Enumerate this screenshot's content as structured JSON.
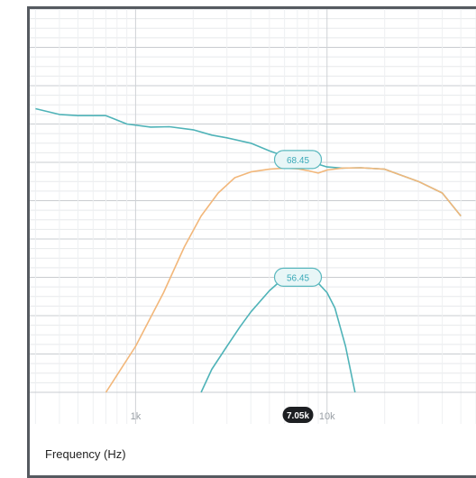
{
  "chart_data": {
    "type": "line",
    "xlabel": "Frequency (Hz)",
    "xscale": "log",
    "xlim": [
      280,
      60000
    ],
    "ylim": [
      0,
      100
    ],
    "x_tick_labels": [
      {
        "value": 1000,
        "label": "1k"
      },
      {
        "value": 10000,
        "label": "10k"
      }
    ],
    "cursor": {
      "value": 7050,
      "label": "7.05k"
    },
    "series": [
      {
        "color": "#4fb3b8",
        "x": [
          300,
          400,
          500,
          700,
          900,
          1200,
          1500,
          2000,
          2500,
          3000,
          4000,
          5000,
          6000,
          7050,
          8000,
          9000,
          10000,
          12000,
          15000,
          20000,
          30000,
          40000,
          50000
        ],
        "y": [
          74,
          72.5,
          72.2,
          72.2,
          70,
          69.2,
          69.3,
          68.5,
          67.1,
          66.4,
          65,
          63,
          61.6,
          61.2,
          60.4,
          59.5,
          58.8,
          58.5,
          58.6,
          58.2,
          55,
          52,
          46
        ],
        "value_label": "68.45"
      },
      {
        "color": "#f2b77a",
        "x": [
          700,
          1000,
          1400,
          1800,
          2200,
          2700,
          3300,
          4000,
          5000,
          6000,
          7050,
          8000,
          9000,
          10000,
          12000,
          15000,
          20000,
          30000,
          40000,
          50000
        ],
        "y": [
          0,
          12,
          26,
          38,
          46,
          52,
          56,
          57.5,
          58.2,
          58.5,
          58.3,
          57.8,
          57.2,
          58,
          58.5,
          58.6,
          58.2,
          55,
          52,
          46
        ]
      },
      {
        "color": "#4fb3b8",
        "x": [
          2200,
          2500,
          3000,
          3500,
          4000,
          5000,
          6000,
          7050,
          8000,
          9000,
          10000,
          11000,
          12500,
          14000
        ],
        "y": [
          0,
          6,
          12,
          17,
          21,
          26.5,
          30,
          30.5,
          30,
          28.5,
          26,
          22,
          12,
          0
        ],
        "value_label": "56.45"
      }
    ]
  }
}
